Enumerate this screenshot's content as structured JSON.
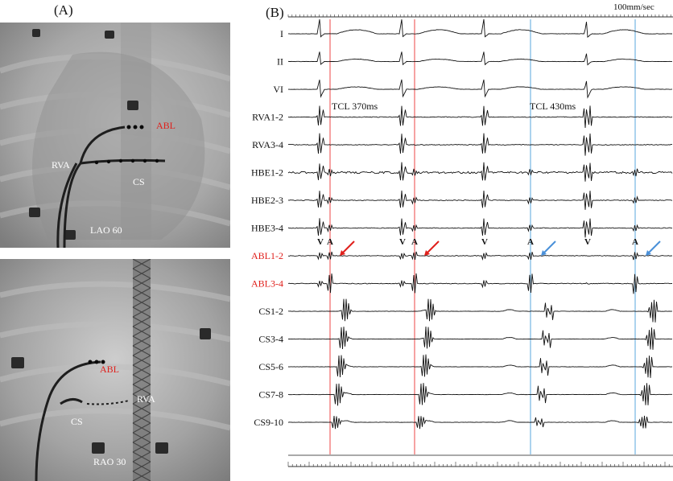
{
  "panels": {
    "a_label": "(A)",
    "b_label": "(B)"
  },
  "fluoro_top": {
    "view_label": "LAO 60",
    "catheters": {
      "abl": "ABL",
      "rva": "RVA",
      "cs": "CS"
    }
  },
  "fluoro_bottom": {
    "view_label": "RAO 30",
    "catheters": {
      "abl": "ABL",
      "rva": "RVA",
      "cs": "CS"
    }
  },
  "egm": {
    "sweep_speed": "100mm/sec",
    "tcl_left": "TCL 370ms",
    "tcl_right": "TCL 430ms",
    "channels": [
      {
        "label": "I",
        "color": "#111111"
      },
      {
        "label": "II",
        "color": "#111111"
      },
      {
        "label": "VI",
        "color": "#111111"
      },
      {
        "label": "RVA1-2",
        "color": "#111111"
      },
      {
        "label": "RVA3-4",
        "color": "#111111"
      },
      {
        "label": "HBE1-2",
        "color": "#111111"
      },
      {
        "label": "HBE2-3",
        "color": "#111111"
      },
      {
        "label": "HBE3-4",
        "color": "#111111"
      },
      {
        "label": "ABL1-2",
        "color": "#e0201c"
      },
      {
        "label": "ABL3-4",
        "color": "#e0201c"
      },
      {
        "label": "CS1-2",
        "color": "#111111"
      },
      {
        "label": "CS3-4",
        "color": "#111111"
      },
      {
        "label": "CS5-6",
        "color": "#111111"
      },
      {
        "label": "CS7-8",
        "color": "#111111"
      },
      {
        "label": "CS9-10",
        "color": "#111111"
      }
    ],
    "markers": {
      "v": "V",
      "a": "A"
    },
    "colors": {
      "red_marker": "#ee4444",
      "blue_marker": "#5aa7dc",
      "red_arrow": "#e0201c",
      "blue_arrow": "#4a90d9"
    }
  }
}
